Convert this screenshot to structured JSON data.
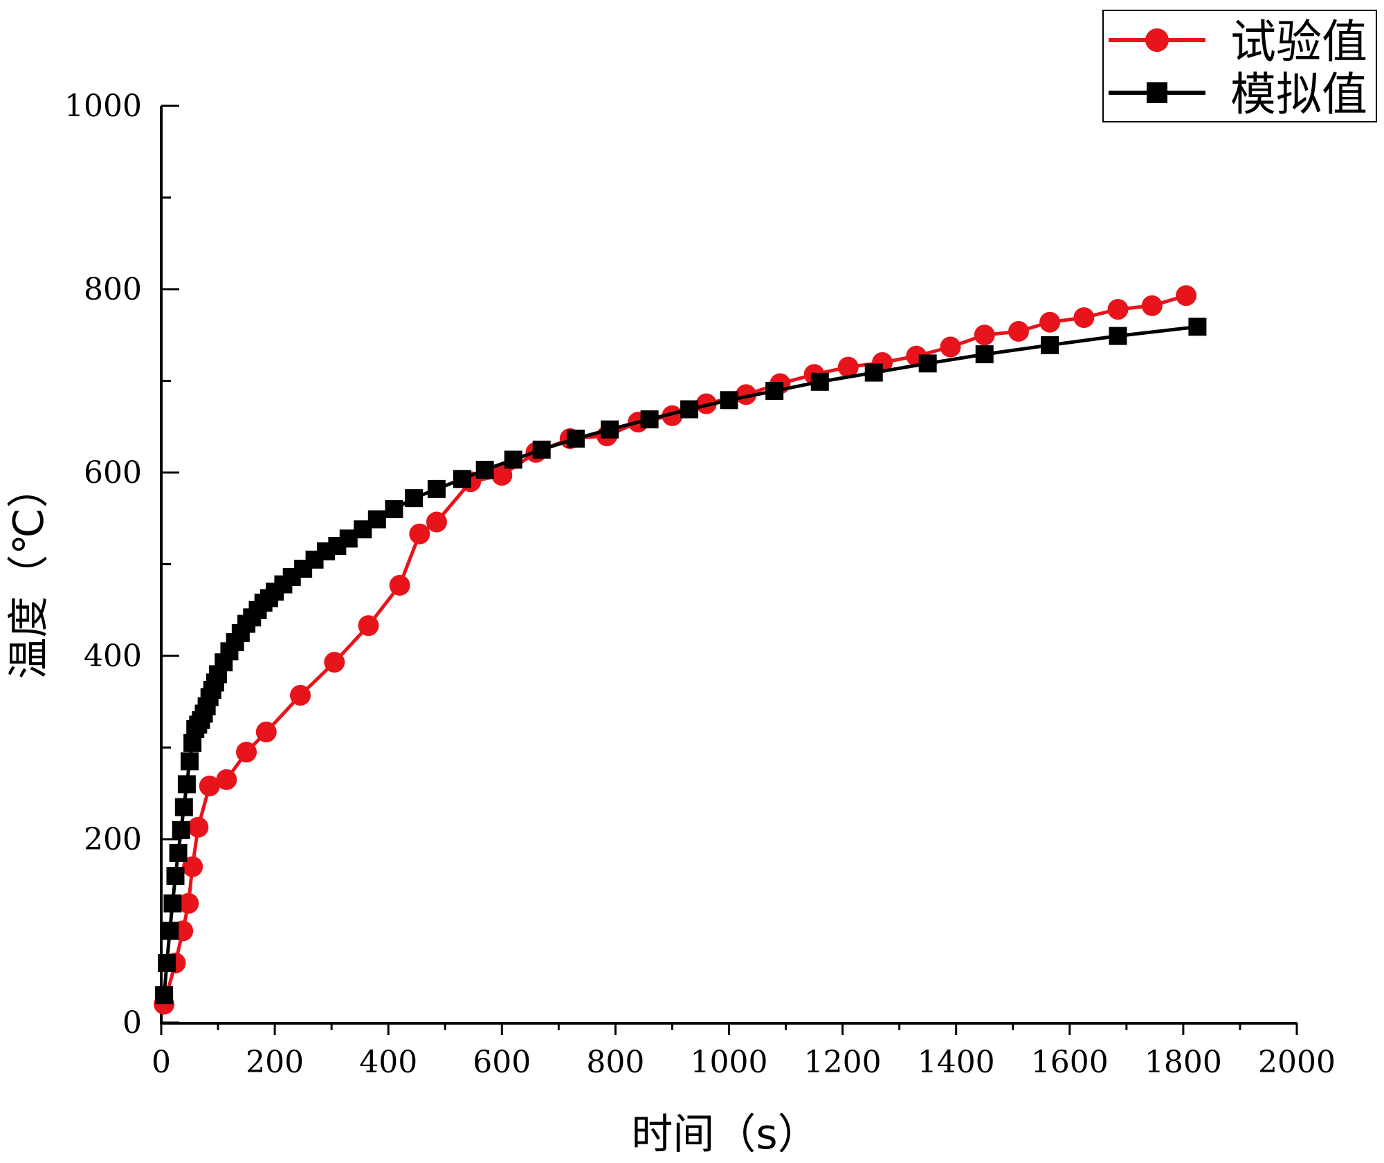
{
  "chart_data": {
    "type": "line",
    "xlabel": "时间（s）",
    "ylabel": "温度（℃）",
    "xlim": [
      0,
      2000
    ],
    "ylim": [
      0,
      1000
    ],
    "x_ticks": [
      "0",
      "200",
      "400",
      "600",
      "800",
      "1000",
      "1200",
      "1400",
      "1600",
      "1800",
      "2000"
    ],
    "y_ticks": [
      "0",
      "200",
      "400",
      "600",
      "800",
      "1000"
    ],
    "grid": false,
    "legend_position": "top-right",
    "series": [
      {
        "name": "试验值",
        "color": "#e8141b",
        "marker": "circle",
        "x": [
          5,
          25,
          38,
          48,
          55,
          65,
          85,
          115,
          150,
          185,
          245,
          305,
          365,
          420,
          455,
          485,
          545,
          600,
          660,
          720,
          785,
          840,
          900,
          960,
          1030,
          1090,
          1150,
          1210,
          1270,
          1330,
          1390,
          1450,
          1510,
          1565,
          1625,
          1685,
          1745,
          1805
        ],
        "y": [
          20,
          65,
          100,
          130,
          170,
          213,
          258,
          265,
          295,
          317,
          357,
          393,
          433,
          477,
          533,
          546,
          590,
          597,
          622,
          637,
          640,
          655,
          662,
          675,
          685,
          697,
          707,
          715,
          720,
          727,
          737,
          750,
          754,
          764,
          769,
          778,
          782,
          793
        ]
      },
      {
        "name": "模拟值",
        "color": "#000000",
        "marker": "square",
        "x": [
          5,
          10,
          15,
          20,
          25,
          30,
          35,
          40,
          45,
          50,
          55,
          60,
          65,
          70,
          75,
          80,
          85,
          90,
          95,
          100,
          110,
          120,
          130,
          140,
          150,
          160,
          170,
          180,
          190,
          200,
          215,
          230,
          250,
          270,
          290,
          310,
          330,
          355,
          380,
          410,
          445,
          485,
          530,
          570,
          620,
          670,
          730,
          790,
          860,
          930,
          1000,
          1080,
          1160,
          1255,
          1350,
          1450,
          1565,
          1685,
          1825
        ],
        "y": [
          30,
          65,
          100,
          130,
          160,
          185,
          210,
          235,
          260,
          285,
          305,
          320,
          325,
          330,
          337,
          345,
          355,
          363,
          371,
          380,
          393,
          405,
          415,
          425,
          435,
          442,
          450,
          458,
          463,
          470,
          478,
          486,
          495,
          505,
          514,
          520,
          528,
          538,
          549,
          560,
          572,
          582,
          593,
          603,
          614,
          625,
          637,
          647,
          658,
          669,
          679,
          689,
          699,
          709,
          719,
          729,
          739,
          749,
          759
        ]
      }
    ]
  }
}
